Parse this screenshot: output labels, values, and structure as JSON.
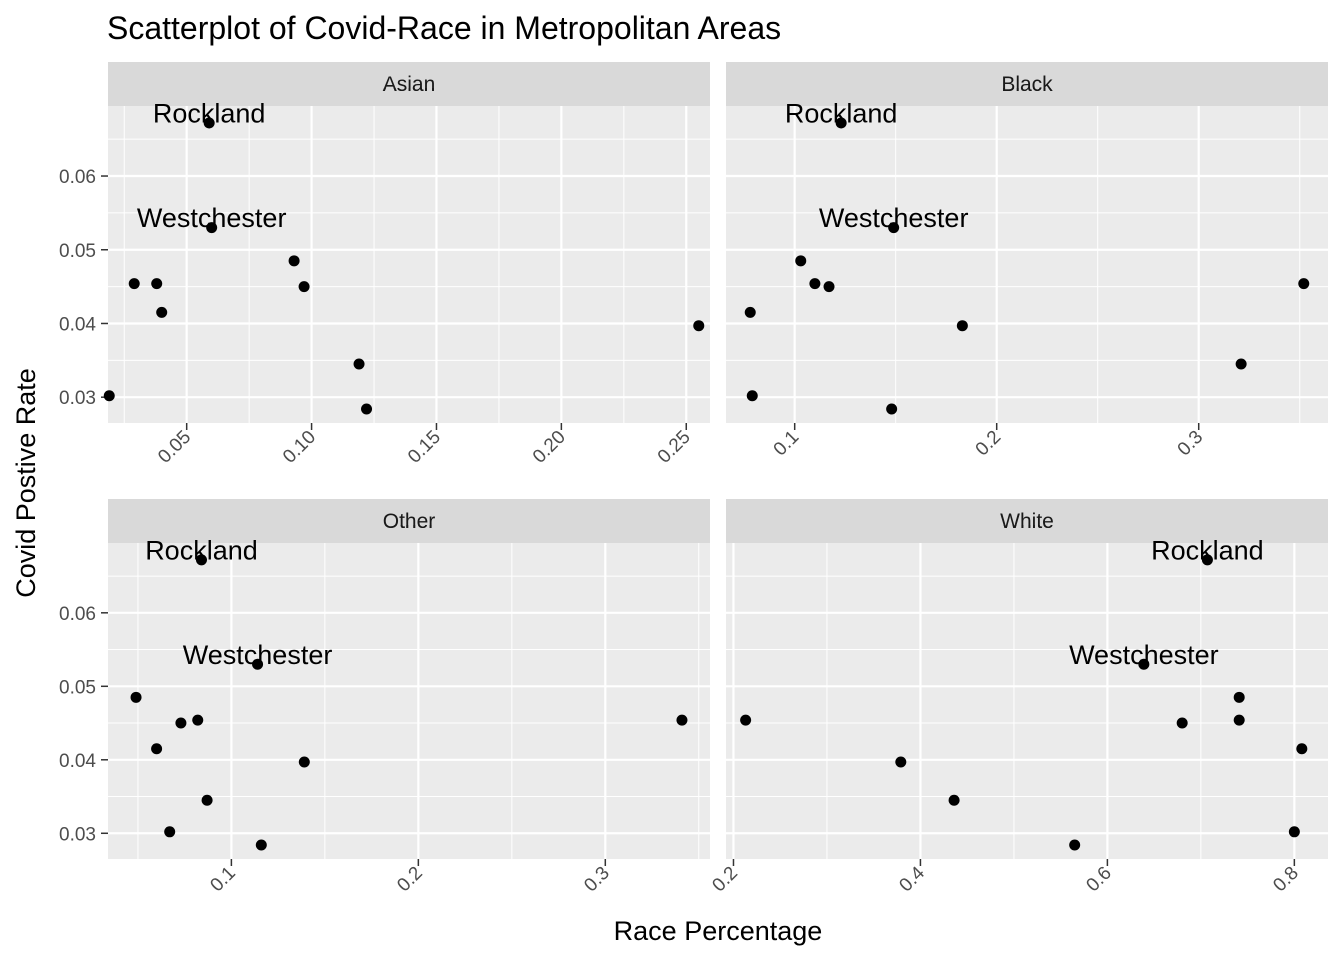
{
  "chart_data": {
    "type": "scatter",
    "title": "Scatterplot of Covid-Race in Metropolitan Areas",
    "xlabel": "Race Percentage",
    "ylabel": "Covid Postive Rate",
    "grid": true,
    "facet_scales": "free_x",
    "ylim": [
      0.0265,
      0.0695
    ],
    "y_ticks": [
      0.03,
      0.04,
      0.05,
      0.06
    ],
    "y_tick_labels": [
      "0.03",
      "0.04",
      "0.05",
      "0.06"
    ],
    "panels": [
      {
        "name": "Asian",
        "xlim": [
          0.0185,
          0.2595
        ],
        "x_ticks": [
          0.05,
          0.1,
          0.15,
          0.2,
          0.25
        ],
        "x_tick_labels": [
          "0.05",
          "0.10",
          "0.15",
          "0.20",
          "0.25"
        ],
        "points": [
          {
            "x": 0.059,
            "y": 0.0672,
            "label": "Rockland"
          },
          {
            "x": 0.06,
            "y": 0.053,
            "label": "Westchester"
          },
          {
            "x": 0.093,
            "y": 0.0485,
            "label": ""
          },
          {
            "x": 0.029,
            "y": 0.0454,
            "label": ""
          },
          {
            "x": 0.038,
            "y": 0.0454,
            "label": ""
          },
          {
            "x": 0.097,
            "y": 0.045,
            "label": ""
          },
          {
            "x": 0.04,
            "y": 0.0415,
            "label": ""
          },
          {
            "x": 0.255,
            "y": 0.0397,
            "label": ""
          },
          {
            "x": 0.119,
            "y": 0.0345,
            "label": ""
          },
          {
            "x": 0.019,
            "y": 0.0302,
            "label": ""
          },
          {
            "x": 0.122,
            "y": 0.0284,
            "label": ""
          }
        ]
      },
      {
        "name": "Black",
        "xlim": [
          0.066,
          0.364
        ],
        "x_ticks": [
          0.1,
          0.2,
          0.3
        ],
        "x_tick_labels": [
          "0.1",
          "0.2",
          "0.3"
        ],
        "points": [
          {
            "x": 0.123,
            "y": 0.0672,
            "label": "Rockland"
          },
          {
            "x": 0.149,
            "y": 0.053,
            "label": "Westchester"
          },
          {
            "x": 0.103,
            "y": 0.0485,
            "label": ""
          },
          {
            "x": 0.11,
            "y": 0.0454,
            "label": ""
          },
          {
            "x": 0.117,
            "y": 0.045,
            "label": ""
          },
          {
            "x": 0.352,
            "y": 0.0454,
            "label": ""
          },
          {
            "x": 0.078,
            "y": 0.0415,
            "label": ""
          },
          {
            "x": 0.183,
            "y": 0.0397,
            "label": ""
          },
          {
            "x": 0.321,
            "y": 0.0345,
            "label": ""
          },
          {
            "x": 0.079,
            "y": 0.0302,
            "label": ""
          },
          {
            "x": 0.148,
            "y": 0.0284,
            "label": ""
          }
        ]
      },
      {
        "name": "Other",
        "xlim": [
          0.034,
          0.356
        ],
        "x_ticks": [
          0.1,
          0.2,
          0.3
        ],
        "x_tick_labels": [
          "0.1",
          "0.2",
          "0.3"
        ],
        "points": [
          {
            "x": 0.084,
            "y": 0.0672,
            "label": "Rockland"
          },
          {
            "x": 0.114,
            "y": 0.053,
            "label": "Westchester"
          },
          {
            "x": 0.049,
            "y": 0.0485,
            "label": ""
          },
          {
            "x": 0.082,
            "y": 0.0454,
            "label": ""
          },
          {
            "x": 0.073,
            "y": 0.045,
            "label": ""
          },
          {
            "x": 0.341,
            "y": 0.0454,
            "label": ""
          },
          {
            "x": 0.06,
            "y": 0.0415,
            "label": ""
          },
          {
            "x": 0.139,
            "y": 0.0397,
            "label": ""
          },
          {
            "x": 0.087,
            "y": 0.0345,
            "label": ""
          },
          {
            "x": 0.067,
            "y": 0.0302,
            "label": ""
          },
          {
            "x": 0.116,
            "y": 0.0284,
            "label": ""
          }
        ]
      },
      {
        "name": "White",
        "xlim": [
          0.192,
          0.836
        ],
        "x_ticks": [
          0.2,
          0.4,
          0.6,
          0.8
        ],
        "x_tick_labels": [
          "0.2",
          "0.4",
          "0.6",
          "0.8"
        ],
        "points": [
          {
            "x": 0.707,
            "y": 0.0672,
            "label": "Rockland"
          },
          {
            "x": 0.639,
            "y": 0.053,
            "label": "Westchester"
          },
          {
            "x": 0.741,
            "y": 0.0485,
            "label": ""
          },
          {
            "x": 0.741,
            "y": 0.0454,
            "label": ""
          },
          {
            "x": 0.68,
            "y": 0.045,
            "label": ""
          },
          {
            "x": 0.213,
            "y": 0.0454,
            "label": ""
          },
          {
            "x": 0.808,
            "y": 0.0415,
            "label": ""
          },
          {
            "x": 0.379,
            "y": 0.0397,
            "label": ""
          },
          {
            "x": 0.436,
            "y": 0.0345,
            "label": ""
          },
          {
            "x": 0.8,
            "y": 0.0302,
            "label": ""
          },
          {
            "x": 0.565,
            "y": 0.0284,
            "label": ""
          }
        ]
      }
    ]
  }
}
